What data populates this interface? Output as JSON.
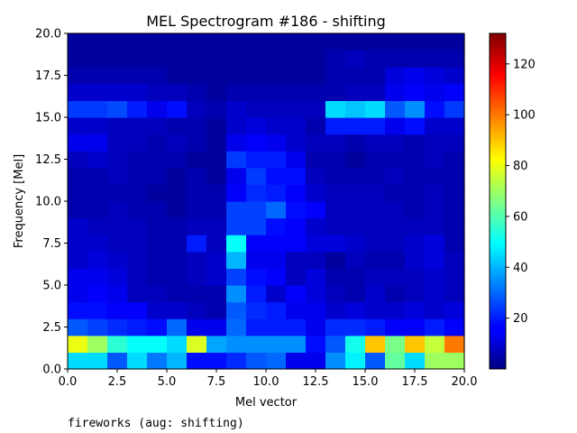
{
  "chart_data": {
    "type": "heatmap",
    "title": "MEL Spectrogram #186 - shifting",
    "xlabel": "Mel vector",
    "ylabel": "Frequency [Mel]",
    "xlim": [
      0,
      20
    ],
    "ylim": [
      0,
      20
    ],
    "xticks": [
      "0.0",
      "2.5",
      "5.0",
      "7.5",
      "10.0",
      "12.5",
      "15.0",
      "17.5",
      "20.0"
    ],
    "yticks": [
      "0.0",
      "2.5",
      "5.0",
      "7.5",
      "10.0",
      "12.5",
      "15.0",
      "17.5",
      "20.0"
    ],
    "colormap": "jet",
    "colorbar": {
      "min": 0,
      "max": 132,
      "ticks": [
        "20",
        "40",
        "60",
        "80",
        "100",
        "120"
      ]
    },
    "rows_bottom_to_top": [
      [
        45,
        45,
        28,
        45,
        32,
        40,
        18,
        18,
        22,
        28,
        30,
        14,
        14,
        35,
        48,
        28,
        62,
        45,
        70,
        70
      ],
      [
        80,
        70,
        55,
        50,
        50,
        45,
        78,
        38,
        35,
        35,
        35,
        35,
        18,
        28,
        52,
        90,
        65,
        90,
        75,
        100
      ],
      [
        28,
        25,
        22,
        20,
        18,
        30,
        14,
        14,
        30,
        20,
        20,
        20,
        14,
        22,
        22,
        20,
        16,
        16,
        20,
        16
      ],
      [
        18,
        18,
        16,
        16,
        10,
        10,
        8,
        6,
        28,
        22,
        20,
        14,
        14,
        10,
        12,
        10,
        10,
        12,
        10,
        12
      ],
      [
        14,
        16,
        14,
        8,
        8,
        6,
        6,
        6,
        35,
        20,
        10,
        16,
        12,
        8,
        6,
        10,
        6,
        8,
        10,
        8
      ],
      [
        14,
        14,
        12,
        8,
        6,
        6,
        8,
        10,
        25,
        18,
        16,
        8,
        12,
        6,
        6,
        8,
        8,
        8,
        10,
        8
      ],
      [
        10,
        12,
        10,
        8,
        6,
        6,
        8,
        10,
        40,
        14,
        14,
        8,
        8,
        4,
        8,
        6,
        6,
        10,
        12,
        8
      ],
      [
        10,
        10,
        8,
        8,
        6,
        6,
        20,
        8,
        50,
        16,
        16,
        16,
        12,
        12,
        10,
        8,
        8,
        10,
        12,
        6
      ],
      [
        10,
        8,
        8,
        8,
        6,
        6,
        8,
        8,
        25,
        25,
        18,
        16,
        10,
        8,
        8,
        8,
        8,
        8,
        8,
        6
      ],
      [
        6,
        6,
        8,
        6,
        6,
        4,
        6,
        6,
        25,
        25,
        30,
        18,
        16,
        8,
        8,
        8,
        8,
        6,
        8,
        6
      ],
      [
        6,
        6,
        6,
        6,
        4,
        4,
        6,
        6,
        16,
        22,
        20,
        16,
        10,
        8,
        8,
        8,
        6,
        6,
        8,
        6
      ],
      [
        6,
        6,
        8,
        6,
        6,
        4,
        6,
        4,
        14,
        24,
        18,
        18,
        8,
        6,
        6,
        6,
        8,
        6,
        6,
        6
      ],
      [
        8,
        10,
        8,
        6,
        6,
        6,
        4,
        4,
        24,
        20,
        20,
        14,
        6,
        6,
        4,
        6,
        6,
        6,
        8,
        6
      ],
      [
        14,
        14,
        8,
        8,
        6,
        8,
        6,
        4,
        14,
        16,
        14,
        10,
        8,
        8,
        6,
        8,
        8,
        6,
        8,
        8
      ],
      [
        10,
        10,
        8,
        8,
        8,
        6,
        6,
        4,
        10,
        12,
        10,
        10,
        6,
        20,
        20,
        20,
        14,
        18,
        10,
        10
      ],
      [
        24,
        24,
        26,
        20,
        14,
        18,
        8,
        6,
        10,
        8,
        8,
        8,
        8,
        45,
        42,
        45,
        28,
        35,
        18,
        24
      ],
      [
        10,
        10,
        10,
        10,
        8,
        8,
        6,
        4,
        6,
        6,
        6,
        6,
        6,
        6,
        8,
        8,
        14,
        16,
        14,
        16
      ],
      [
        6,
        6,
        6,
        6,
        6,
        4,
        4,
        4,
        4,
        4,
        4,
        4,
        4,
        6,
        6,
        6,
        12,
        14,
        12,
        10
      ],
      [
        4,
        4,
        4,
        4,
        4,
        4,
        4,
        4,
        4,
        4,
        4,
        4,
        4,
        6,
        8,
        6,
        6,
        6,
        6,
        6
      ],
      [
        4,
        4,
        4,
        4,
        4,
        4,
        4,
        4,
        4,
        4,
        4,
        4,
        4,
        4,
        4,
        4,
        4,
        4,
        4,
        4
      ]
    ]
  },
  "caption": "fireworks (aug: shifting)"
}
